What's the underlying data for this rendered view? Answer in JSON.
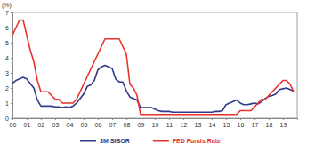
{
  "chart_data": {
    "type": "line",
    "y_label": "(%)",
    "x": [
      2000,
      2000.25,
      2000.5,
      2000.75,
      2001,
      2001.25,
      2001.5,
      2001.75,
      2002,
      2002.25,
      2002.5,
      2002.75,
      2003,
      2003.25,
      2003.5,
      2003.75,
      2004,
      2004.25,
      2004.5,
      2004.75,
      2005,
      2005.25,
      2005.5,
      2005.75,
      2006,
      2006.25,
      2006.5,
      2006.75,
      2007,
      2007.25,
      2007.5,
      2007.75,
      2008,
      2008.25,
      2008.5,
      2008.75,
      2009,
      2009.25,
      2009.5,
      2009.75,
      2010,
      2010.25,
      2010.5,
      2010.75,
      2011,
      2011.25,
      2011.5,
      2011.75,
      2012,
      2012.25,
      2012.5,
      2012.75,
      2013,
      2013.25,
      2013.5,
      2013.75,
      2014,
      2014.25,
      2014.5,
      2014.75,
      2015,
      2015.25,
      2015.5,
      2015.75,
      2016,
      2016.25,
      2016.5,
      2016.75,
      2017,
      2017.25,
      2017.5,
      2017.75,
      2018,
      2018.25,
      2018.5,
      2018.75,
      2019,
      2019.25,
      2019.5,
      2019.75
    ],
    "series": [
      {
        "name": "3M SIBOR",
        "color": "#2e3a87",
        "values": [
          2.3,
          2.5,
          2.6,
          2.7,
          2.6,
          2.3,
          2.0,
          1.2,
          0.8,
          0.8,
          0.8,
          0.8,
          0.75,
          0.75,
          0.7,
          0.75,
          0.7,
          0.8,
          1.0,
          1.3,
          1.6,
          2.1,
          2.2,
          2.5,
          3.2,
          3.4,
          3.5,
          3.4,
          3.3,
          2.6,
          2.4,
          2.4,
          1.8,
          1.4,
          1.3,
          1.2,
          0.7,
          0.7,
          0.7,
          0.7,
          0.6,
          0.5,
          0.45,
          0.45,
          0.45,
          0.4,
          0.4,
          0.4,
          0.4,
          0.4,
          0.4,
          0.4,
          0.4,
          0.4,
          0.4,
          0.4,
          0.4,
          0.45,
          0.45,
          0.5,
          0.9,
          1.0,
          1.1,
          1.2,
          1.0,
          0.9,
          0.9,
          0.95,
          1.0,
          0.95,
          1.1,
          1.3,
          1.45,
          1.5,
          1.6,
          1.9,
          1.95,
          2.0,
          1.9,
          1.8
        ]
      },
      {
        "name": "FED Funds Rate",
        "color": "#e8322c",
        "values": [
          5.5,
          6.0,
          6.5,
          6.5,
          5.5,
          4.5,
          3.75,
          2.5,
          1.75,
          1.75,
          1.75,
          1.5,
          1.25,
          1.25,
          1.0,
          1.0,
          1.0,
          1.0,
          1.25,
          1.75,
          2.25,
          2.75,
          3.25,
          3.75,
          4.25,
          4.75,
          5.25,
          5.25,
          5.25,
          5.25,
          5.25,
          4.75,
          4.25,
          2.25,
          2.0,
          1.5,
          0.25,
          0.25,
          0.25,
          0.25,
          0.25,
          0.25,
          0.25,
          0.25,
          0.25,
          0.25,
          0.25,
          0.25,
          0.25,
          0.25,
          0.25,
          0.25,
          0.25,
          0.25,
          0.25,
          0.25,
          0.25,
          0.25,
          0.25,
          0.25,
          0.25,
          0.25,
          0.25,
          0.25,
          0.5,
          0.5,
          0.5,
          0.5,
          0.75,
          1.0,
          1.25,
          1.25,
          1.5,
          1.75,
          2.0,
          2.25,
          2.5,
          2.5,
          2.25,
          1.75
        ]
      }
    ],
    "xlim": [
      2000,
      2020
    ],
    "xticks": [
      {
        "value": 2000,
        "label": "00"
      },
      {
        "value": 2001,
        "label": "01"
      },
      {
        "value": 2002,
        "label": "02"
      },
      {
        "value": 2003,
        "label": "03"
      },
      {
        "value": 2004,
        "label": "04"
      },
      {
        "value": 2005,
        "label": "05"
      },
      {
        "value": 2006,
        "label": "06"
      },
      {
        "value": 2007,
        "label": "07"
      },
      {
        "value": 2008,
        "label": "08"
      },
      {
        "value": 2009,
        "label": "09"
      },
      {
        "value": 2010,
        "label": "10"
      },
      {
        "value": 2011,
        "label": "11"
      },
      {
        "value": 2012,
        "label": "12"
      },
      {
        "value": 2013,
        "label": "13"
      },
      {
        "value": 2014,
        "label": "14"
      },
      {
        "value": 2015,
        "label": "15"
      },
      {
        "value": 2016,
        "label": "16"
      },
      {
        "value": 2017,
        "label": "17"
      },
      {
        "value": 2018,
        "label": "18"
      },
      {
        "value": 2019,
        "label": "19"
      }
    ],
    "ylim": [
      0,
      7
    ],
    "yticks": [
      0,
      1,
      2,
      3,
      4,
      5,
      6,
      7
    ],
    "grid": false,
    "legend": "bottom"
  }
}
